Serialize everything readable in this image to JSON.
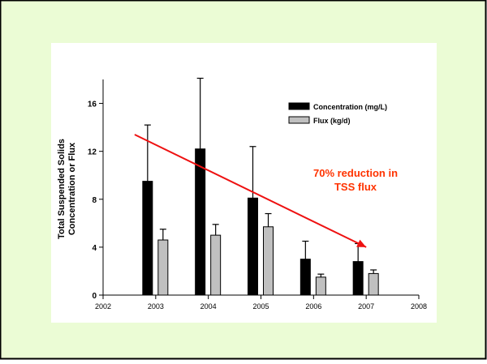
{
  "chart_data": {
    "type": "bar",
    "x_ticks": [
      "2002",
      "2003",
      "2004",
      "2005",
      "2006",
      "2007",
      "2008"
    ],
    "xlim": [
      2002,
      2008
    ],
    "ylim": [
      0,
      18
    ],
    "y_ticks": [
      "0",
      "4",
      "8",
      "12",
      "16"
    ],
    "ylabel_line1": "Total Suspended Solids",
    "ylabel_line2": "Concentration or Flux",
    "series": [
      {
        "name": "Concentration (mg/L)",
        "color": "#000000",
        "x": [
          2003,
          2004,
          2005,
          2006,
          2007
        ],
        "values": [
          9.5,
          12.2,
          8.1,
          3.0,
          2.8
        ],
        "error": [
          4.7,
          5.9,
          4.3,
          1.5,
          1.5
        ]
      },
      {
        "name": "Flux (kg/d)",
        "color": "#c0c0c0",
        "x": [
          2003,
          2004,
          2005,
          2006,
          2007
        ],
        "values": [
          4.6,
          5.0,
          5.7,
          1.5,
          1.8
        ],
        "error": [
          0.9,
          0.9,
          1.1,
          0.25,
          0.3
        ]
      }
    ],
    "annotation": {
      "line1": "70% reduction in",
      "line2": "TSS  flux",
      "color": "#ff3300"
    },
    "trend_arrow": {
      "color": "#ee1111",
      "start": [
        2002.6,
        13.4
      ],
      "end": [
        2007.0,
        4.0
      ]
    },
    "legend_position": "top-right",
    "grid": false
  },
  "colors": {
    "page_background": "#ffffff",
    "slide_background": "#ebfcd5",
    "chart_panel": "#ffffff",
    "border": "#000000"
  }
}
